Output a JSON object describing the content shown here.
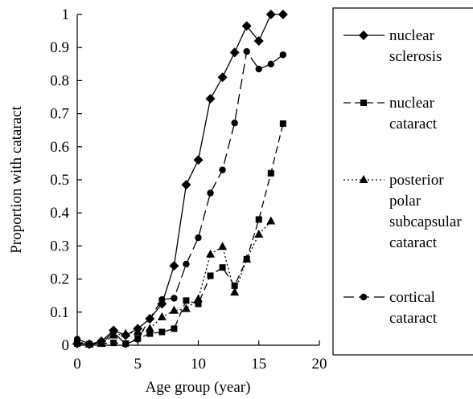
{
  "chart_data": {
    "type": "line",
    "xlabel": "Age group (year)",
    "ylabel": "Proportion with cataract",
    "xlim": [
      0,
      20
    ],
    "ylim": [
      0,
      1
    ],
    "xticks": [
      "0",
      "5",
      "10",
      "15",
      "20"
    ],
    "yticks": [
      "0",
      "0.1",
      "0.2",
      "0.3",
      "0.4",
      "0.5",
      "0.6",
      "0.7",
      "0.8",
      "0.9",
      "1"
    ],
    "grid": false,
    "legend_position": "right",
    "series": [
      {
        "name": "nuclear sclerosis",
        "legend_lines": [
          "nuclear",
          "sclerosis"
        ],
        "marker": "diamond",
        "dash": "solid",
        "x": [
          0,
          1,
          2,
          3,
          4,
          5,
          6,
          7,
          8,
          9,
          10,
          11,
          12,
          13,
          14,
          15,
          16,
          17
        ],
        "y": [
          0.005,
          0.003,
          0.012,
          0.045,
          0.03,
          0.05,
          0.08,
          0.125,
          0.24,
          0.485,
          0.56,
          0.745,
          0.81,
          0.885,
          0.965,
          0.92,
          1.0,
          1.0
        ]
      },
      {
        "name": "nuclear cataract",
        "legend_lines": [
          "nuclear",
          "cataract"
        ],
        "marker": "square",
        "dash": "dashed",
        "x": [
          0,
          1,
          2,
          3,
          4,
          5,
          6,
          7,
          8,
          9,
          10,
          11,
          12,
          13,
          14,
          15,
          16,
          17
        ],
        "y": [
          0.005,
          0.003,
          0.005,
          0.007,
          0.005,
          0.02,
          0.035,
          0.04,
          0.05,
          0.135,
          0.125,
          0.21,
          0.235,
          0.18,
          0.26,
          0.38,
          0.52,
          0.67
        ]
      },
      {
        "name": "posterior polar subcapsular cataract",
        "legend_lines": [
          "posterior",
          "polar",
          "subcapsular",
          "cataract"
        ],
        "marker": "triangle",
        "dash": "dotted",
        "x": [
          0,
          1,
          2,
          3,
          4,
          5,
          6,
          7,
          8,
          9,
          10,
          11,
          12,
          13,
          14,
          15,
          16
        ],
        "y": [
          0.01,
          0.003,
          0.005,
          0.03,
          0.035,
          0.04,
          0.05,
          0.085,
          0.105,
          0.11,
          0.14,
          0.275,
          0.298,
          0.16,
          0.26,
          0.335,
          0.375
        ]
      },
      {
        "name": "cortical cataract",
        "legend_lines": [
          "cortical",
          "cataract"
        ],
        "marker": "circle",
        "dash": "longdash",
        "x": [
          0,
          1,
          2,
          3,
          4,
          5,
          6,
          7,
          8,
          9,
          10,
          11,
          12,
          13,
          14,
          15,
          16,
          17
        ],
        "y": [
          0.018,
          0.005,
          0.005,
          0.04,
          0.003,
          0.018,
          0.08,
          0.138,
          0.142,
          0.245,
          0.325,
          0.46,
          0.53,
          0.672,
          0.888,
          0.835,
          0.85,
          0.878
        ]
      }
    ]
  }
}
